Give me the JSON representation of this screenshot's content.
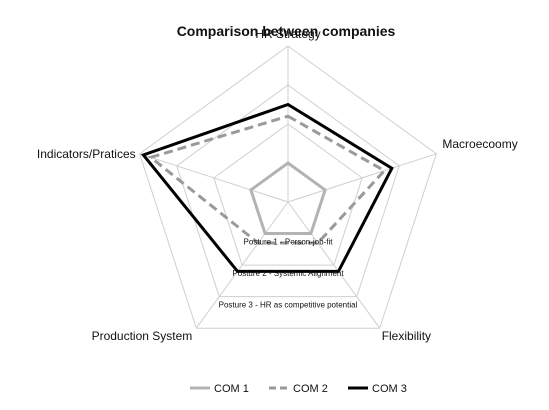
{
  "chart_data": {
    "type": "radar",
    "title": "Comparison between companies",
    "axes": [
      "HR Strategy",
      "Macroecoomy",
      "Flexibility",
      "Production System",
      "Indicators/Pratices"
    ],
    "rmin": 0,
    "rmax": 4,
    "gridlines": true,
    "ring_labels": [
      {
        "level": 1,
        "text": "Posture 1 - Person-job-fit"
      },
      {
        "level": 2,
        "text": "Posture 2 - Systemic Alignment"
      },
      {
        "level": 3,
        "text": "Posture 3 - HR as competitive potential"
      }
    ],
    "series": [
      {
        "name": "COM 1",
        "values": [
          1,
          1,
          1,
          1,
          1
        ],
        "color": "#b3b3b3",
        "style": "solid"
      },
      {
        "name": "COM 2",
        "values": [
          2.2,
          2.6,
          1.3,
          1.3,
          3.7
        ],
        "color": "#9a9a9a",
        "style": "dashed"
      },
      {
        "name": "COM 3",
        "values": [
          2.5,
          2.8,
          2.2,
          2.2,
          3.9
        ],
        "color": "#000000",
        "style": "solid"
      }
    ],
    "legend_position": "bottom"
  }
}
